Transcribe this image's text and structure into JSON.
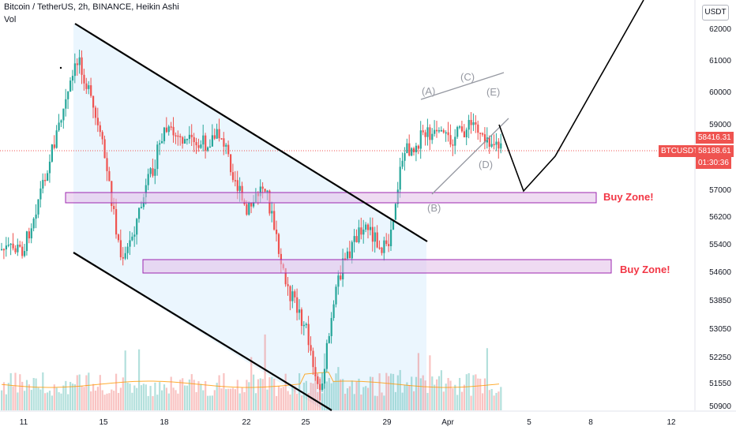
{
  "header": {
    "title": "Bitcoin / TetherUS, 2h, BINANCE, Heikin Ashi",
    "volume_label": "Vol"
  },
  "price_axis": {
    "unit_button": "USDT",
    "ticks": [
      "62000",
      "61000",
      "60000",
      "59000",
      "57000",
      "56200",
      "55400",
      "54600",
      "53850",
      "53050",
      "52250",
      "51550",
      "50900"
    ]
  },
  "time_axis": {
    "ticks": [
      "11",
      "15",
      "18",
      "22",
      "25",
      "29",
      "Apr",
      "5",
      "8",
      "12"
    ]
  },
  "price_tags": {
    "upper_price": "58416.31",
    "symbol": "BTCUSDT",
    "current_price": "58188.61",
    "countdown": "01:30:36"
  },
  "annotations": {
    "buy_zone_1": "Buy Zone!",
    "buy_zone_2": "Buy Zone!",
    "wave_a": "(A)",
    "wave_b": "(B)",
    "wave_c": "(C)",
    "wave_d": "(D)",
    "wave_e": "(E)"
  },
  "colors": {
    "up": "#26a69a",
    "down": "#ef5350",
    "zone_fill": "#e1bee7",
    "zone_border": "#9c27b0",
    "channel_fill": "#e3f2fd",
    "annotation_red": "#f23645",
    "wave_gray": "#9598a1"
  },
  "chart_data": {
    "type": "candlestick",
    "title": "Bitcoin / TetherUS, 2h, BINANCE, Heikin Ashi",
    "x_ticks": [
      "11",
      "15",
      "18",
      "22",
      "25",
      "29",
      "Apr",
      "5",
      "8",
      "12"
    ],
    "y_range": [
      50900,
      62000
    ],
    "y_ticks": [
      62000,
      61000,
      60000,
      59000,
      57000,
      56200,
      55400,
      54600,
      53850,
      53050,
      52250,
      51550,
      50900
    ],
    "path_points": [
      {
        "x": "11",
        "close": 55500
      },
      {
        "x": "14",
        "close": 61200
      },
      {
        "x": "15",
        "close": 58400
      },
      {
        "x": "16",
        "close": 55000
      },
      {
        "x": "18",
        "close": 59000
      },
      {
        "x": "20",
        "close": 58500
      },
      {
        "x": "21",
        "close": 58900
      },
      {
        "x": "22",
        "close": 56500
      },
      {
        "x": "23",
        "close": 57500
      },
      {
        "x": "24",
        "close": 54600
      },
      {
        "x": "25",
        "close": 53200
      },
      {
        "x": "26",
        "close": 51300
      },
      {
        "x": "27",
        "close": 54800
      },
      {
        "x": "28",
        "close": 56300
      },
      {
        "x": "29",
        "close": 55400
      },
      {
        "x": "30",
        "close": 58300
      },
      {
        "x": "31",
        "close": 58900
      },
      {
        "x": "Apr",
        "close": 58700
      },
      {
        "x": "2",
        "close": 59200
      },
      {
        "x": "3",
        "close": 58400
      }
    ],
    "buy_zones": [
      {
        "label": "Buy Zone!",
        "low": 56600,
        "high": 56950
      },
      {
        "label": "Buy Zone!",
        "low": 54600,
        "high": 54950
      }
    ],
    "current_price": 58188.61,
    "grid": false
  }
}
